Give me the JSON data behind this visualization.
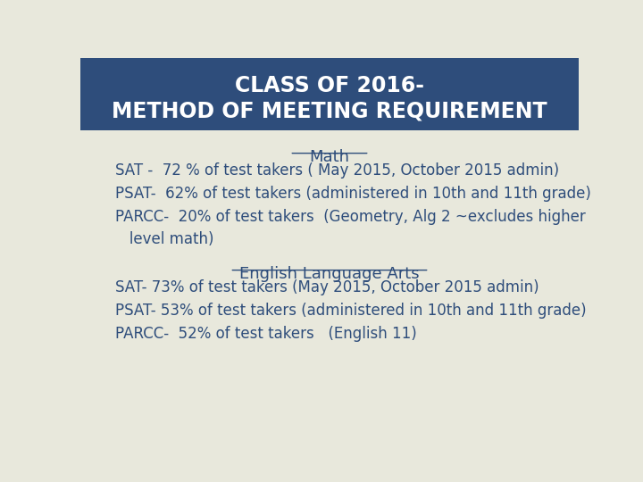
{
  "title_line1": "CLASS OF 2016-",
  "title_line2": "METHOD OF MEETING REQUIREMENT",
  "title_bg_color": "#2E4D7B",
  "title_text_color": "#FFFFFF",
  "body_bg_color": "#E8E8DC",
  "body_text_color": "#2E4D7B",
  "math_header": "Math",
  "math_lines": [
    "SAT -  72 % of test takers ( May 2015, October 2015 admin)",
    "PSAT-  62% of test takers (administered in 10th and 11th grade)",
    "PARCC-  20% of test takers  (Geometry, Alg 2 ~excludes higher",
    "   level math)"
  ],
  "ela_header": "English Language Arts",
  "ela_lines": [
    "SAT- 73% of test takers (May 2015, October 2015 admin)",
    "PSAT- 53% of test takers (administered in 10th and 11th grade)",
    "PARCC-  52% of test takers   (English 11)"
  ],
  "font_size_title": 17,
  "font_size_header": 13,
  "font_size_body": 12
}
